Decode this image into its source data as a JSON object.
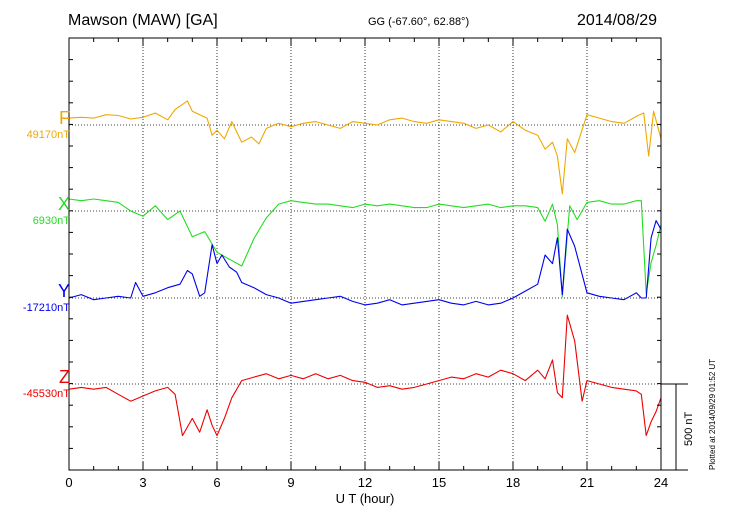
{
  "header": {
    "station": "Mawson (MAW)  [GA]",
    "coords": "GG (-67.60°,  62.88°)",
    "date": "2014/08/29"
  },
  "plotted_note": "Plotted at 2014/09/29 01:52 UT",
  "scale_label": "500 nT",
  "chart_data": {
    "type": "line",
    "xlabel": "U T (hour)",
    "xlim": [
      0,
      24
    ],
    "xticks": [
      "0",
      "3",
      "6",
      "9",
      "12",
      "15",
      "18",
      "21",
      "24"
    ],
    "scale_bar_nT": 500,
    "grid": true,
    "series": [
      {
        "name": "F",
        "baseline_label": "49170nT",
        "color": "#f0a800",
        "x": [
          0,
          0.5,
          1,
          1.5,
          2,
          2.5,
          3,
          3.5,
          4,
          4.3,
          4.6,
          4.8,
          5,
          5.3,
          5.6,
          5.8,
          6,
          6.3,
          6.6,
          7,
          7.4,
          7.7,
          8,
          8.5,
          9,
          9.5,
          10,
          10.5,
          11,
          11.5,
          12,
          12.5,
          13,
          13.5,
          14,
          14.5,
          15,
          15.5,
          16,
          16.5,
          17,
          17.5,
          18,
          18.5,
          19,
          19.3,
          19.6,
          19.8,
          20,
          20.2,
          20.5,
          21,
          21.5,
          22,
          22.5,
          23,
          23.3,
          23.5,
          23.7,
          24
        ],
        "values": [
          40,
          45,
          40,
          60,
          55,
          35,
          45,
          70,
          30,
          90,
          120,
          140,
          80,
          60,
          40,
          -60,
          -30,
          -80,
          20,
          -100,
          -70,
          -110,
          -20,
          10,
          -10,
          10,
          20,
          0,
          -20,
          20,
          10,
          0,
          30,
          40,
          20,
          10,
          30,
          20,
          10,
          -20,
          0,
          -40,
          20,
          -30,
          -60,
          -140,
          -100,
          -180,
          -400,
          -80,
          -160,
          60,
          40,
          20,
          10,
          50,
          70,
          -180,
          80,
          -80
        ]
      },
      {
        "name": "X",
        "baseline_label": "6930nT",
        "color": "#22dd22",
        "x": [
          0,
          0.5,
          1,
          1.5,
          2,
          2.5,
          3,
          3.5,
          4,
          4.5,
          5,
          5.5,
          6,
          6.5,
          7,
          7.5,
          8,
          8.5,
          9,
          9.5,
          10,
          10.5,
          11,
          11.5,
          12,
          12.5,
          13,
          13.5,
          14,
          14.5,
          15,
          15.5,
          16,
          16.5,
          17,
          17.5,
          18,
          18.5,
          19,
          19.3,
          19.6,
          19.8,
          20,
          20.3,
          20.6,
          21,
          21.5,
          22,
          22.5,
          23,
          23.2,
          23.4,
          23.6,
          23.8,
          24
        ],
        "values": [
          70,
          60,
          70,
          60,
          50,
          0,
          -30,
          30,
          -50,
          0,
          -150,
          -120,
          -240,
          -280,
          -320,
          -160,
          -40,
          40,
          60,
          50,
          40,
          40,
          30,
          20,
          40,
          30,
          40,
          30,
          20,
          20,
          40,
          30,
          20,
          30,
          40,
          20,
          30,
          30,
          20,
          -60,
          40,
          -80,
          -500,
          30,
          -50,
          50,
          60,
          40,
          40,
          60,
          60,
          -480,
          -300,
          -200,
          -80
        ]
      },
      {
        "name": "Y",
        "baseline_label": "-17210nT",
        "color": "#0000ee",
        "x": [
          0,
          0.5,
          1,
          1.5,
          2,
          2.5,
          2.7,
          3,
          3.5,
          4,
          4.5,
          4.8,
          5,
          5.3,
          5.5,
          5.8,
          6,
          6.2,
          6.5,
          6.8,
          7,
          7.5,
          8,
          8.5,
          9,
          9.5,
          10,
          10.5,
          11,
          11.5,
          12,
          12.5,
          13,
          13.5,
          14,
          14.5,
          15,
          15.5,
          16,
          16.5,
          17,
          17.5,
          18,
          18.5,
          19,
          19.3,
          19.6,
          19.8,
          20,
          20.2,
          20.5,
          21,
          21.5,
          22,
          22.5,
          23,
          23.2,
          23.4,
          23.6,
          23.8,
          24
        ],
        "values": [
          0,
          20,
          -10,
          0,
          10,
          0,
          90,
          10,
          30,
          60,
          80,
          160,
          140,
          10,
          30,
          310,
          200,
          250,
          180,
          150,
          90,
          60,
          20,
          0,
          -30,
          -20,
          -10,
          0,
          10,
          -20,
          -40,
          -30,
          -10,
          -40,
          -30,
          -20,
          -10,
          -30,
          -40,
          -20,
          -40,
          -30,
          0,
          40,
          80,
          250,
          200,
          350,
          20,
          400,
          300,
          30,
          10,
          0,
          -10,
          30,
          0,
          0,
          350,
          450,
          400
        ]
      },
      {
        "name": "Z",
        "baseline_label": "-45530nT",
        "color": "#ee0000",
        "x": [
          0,
          0.5,
          1,
          1.5,
          2,
          2.5,
          3,
          3.5,
          4,
          4.3,
          4.6,
          4.8,
          5,
          5.3,
          5.6,
          5.8,
          6,
          6.3,
          6.6,
          7,
          7.5,
          8,
          8.5,
          9,
          9.5,
          10,
          10.5,
          11,
          11.5,
          12,
          12.5,
          13,
          13.5,
          14,
          14.5,
          15,
          15.5,
          16,
          16.5,
          17,
          17.5,
          18,
          18.5,
          19,
          19.3,
          19.6,
          19.8,
          20,
          20.2,
          20.5,
          20.8,
          21,
          21.5,
          22,
          22.5,
          23,
          23.2,
          23.4,
          23.6,
          23.8,
          24
        ],
        "values": [
          -30,
          -20,
          -30,
          -20,
          -60,
          -100,
          -70,
          -40,
          -20,
          -60,
          -300,
          -250,
          -200,
          -280,
          -150,
          -240,
          -300,
          -200,
          -80,
          20,
          40,
          60,
          30,
          50,
          30,
          60,
          30,
          50,
          20,
          10,
          -20,
          -10,
          -30,
          -20,
          0,
          20,
          40,
          30,
          60,
          40,
          80,
          60,
          20,
          80,
          30,
          140,
          -50,
          -80,
          400,
          250,
          -100,
          20,
          0,
          -20,
          -30,
          -40,
          -60,
          -300,
          -220,
          -160,
          -80
        ]
      }
    ]
  }
}
